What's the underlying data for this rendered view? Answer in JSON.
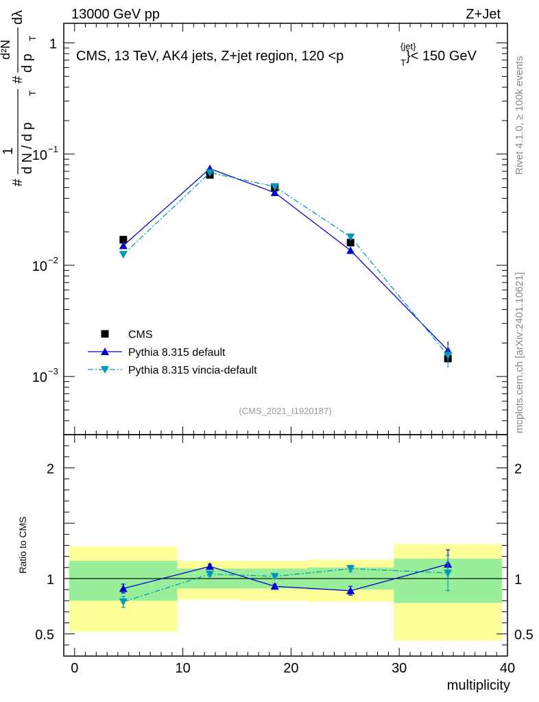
{
  "header": {
    "left_label": "13000 GeV pp",
    "right_label": "Z+Jet"
  },
  "side_labels": {
    "rivet": "Rivet 4.1.0, ≥ 100k events",
    "mcplots": "mcplots.cern.ch [arXiv:2401.10621]"
  },
  "chart_data": [
    {
      "type": "line",
      "panel": "main",
      "title": "CMS, 13 TeV, AK4 jets, Z+jet region, 120 <p_T^{jet}< 150 GeV",
      "title_parts": {
        "text": "CMS, 13 TeV, AK4 jets, Z+jet region, 120 <p",
        "sup": "{jet}",
        "sub": "T",
        "tail": "}< 150 GeV"
      },
      "ylabel": "1/dN/dp_T # d^2N/dp_T dλ",
      "ylabel_parts": {
        "prefix": "#",
        "one": "1",
        "dN": "d N / d p",
        "T": "T",
        "hash2": "#",
        "frac2_num": "d²N",
        "frac2_den": "d p",
        "lam": "dλ"
      },
      "yscale": "log",
      "ylim": [
        0.0003,
        1.5
      ],
      "xlim": [
        -1,
        40
      ],
      "y_ticks": [
        {
          "value": 1,
          "label": "1"
        },
        {
          "value": 0.1,
          "label": "10",
          "exp": "−1"
        },
        {
          "value": 0.01,
          "label": "10",
          "exp": "−2"
        },
        {
          "value": 0.001,
          "label": "10",
          "exp": "−3"
        }
      ],
      "watermark": "(CMS_2021_I1920187)",
      "legend": [
        {
          "name": "CMS",
          "marker": "square",
          "color": "#000000"
        },
        {
          "name": "Pythia 8.315 default",
          "marker": "triangle-up",
          "color": "#0000cc"
        },
        {
          "name": "Pythia 8.315 vincia-default",
          "marker": "triangle-down",
          "color": "#0099bb"
        }
      ],
      "series": [
        {
          "name": "CMS",
          "x": [
            4.5,
            12.5,
            18.5,
            25.5,
            34.5
          ],
          "y": [
            0.017,
            0.065,
            0.05,
            0.016,
            0.00145
          ]
        },
        {
          "name": "Pythia 8.315 default",
          "x": [
            4.5,
            12.5,
            18.5,
            25.5,
            34.5
          ],
          "y": [
            0.015,
            0.074,
            0.045,
            0.0136,
            0.00172
          ],
          "yerr": [
            0.0006,
            0.0012,
            0.0008,
            0.0005,
            0.00035
          ]
        },
        {
          "name": "Pythia 8.315 vincia-default",
          "x": [
            4.5,
            12.5,
            18.5,
            25.5,
            34.5
          ],
          "y": [
            0.0125,
            0.068,
            0.051,
            0.018,
            0.00155
          ],
          "yerr": [
            0.0008,
            0.0012,
            0.001,
            0.0006,
            0.00035
          ]
        }
      ]
    },
    {
      "type": "line",
      "panel": "ratio",
      "ylabel": "Ratio to CMS",
      "xlabel": "multiplicity",
      "ylim": [
        0.3,
        2.3
      ],
      "xlim": [
        -1,
        40
      ],
      "y_ticks": [
        {
          "value": 0.5,
          "label": "0.5"
        },
        {
          "value": 1,
          "label": "1"
        },
        {
          "value": 2,
          "label": "2"
        }
      ],
      "x_ticks": [
        {
          "value": 0,
          "label": "0"
        },
        {
          "value": 10,
          "label": "10"
        },
        {
          "value": 20,
          "label": "20"
        },
        {
          "value": 30,
          "label": "30"
        },
        {
          "value": 40,
          "label": "40"
        }
      ],
      "bands": [
        {
          "x0": -0.5,
          "x1": 9.5,
          "stat": [
            0.8,
            1.16
          ],
          "total": [
            0.52,
            1.29
          ]
        },
        {
          "x0": 9.5,
          "x1": 15.5,
          "stat": [
            0.91,
            1.09
          ],
          "total": [
            0.81,
            1.16
          ]
        },
        {
          "x0": 15.5,
          "x1": 21.5,
          "stat": [
            0.91,
            1.09
          ],
          "total": [
            0.8,
            1.16
          ]
        },
        {
          "x0": 21.5,
          "x1": 29.5,
          "stat": [
            0.9,
            1.1
          ],
          "total": [
            0.79,
            1.17
          ]
        },
        {
          "x0": 29.5,
          "x1": 39.5,
          "stat": [
            0.78,
            1.18
          ],
          "total": [
            0.44,
            1.31
          ]
        }
      ],
      "series": [
        {
          "name": "Pythia 8.315 default",
          "x": [
            4.5,
            12.5,
            18.5,
            25.5,
            34.5
          ],
          "y": [
            0.91,
            1.11,
            0.93,
            0.89,
            1.13
          ],
          "yerr": [
            0.04,
            0.02,
            0.02,
            0.04,
            0.13
          ]
        },
        {
          "name": "Pythia 8.315 vincia-default",
          "x": [
            4.5,
            12.5,
            18.5,
            25.5,
            34.5
          ],
          "y": [
            0.79,
            1.04,
            1.02,
            1.09,
            1.05
          ],
          "yerr": [
            0.05,
            0.02,
            0.02,
            0.03,
            0.16
          ]
        }
      ]
    }
  ]
}
